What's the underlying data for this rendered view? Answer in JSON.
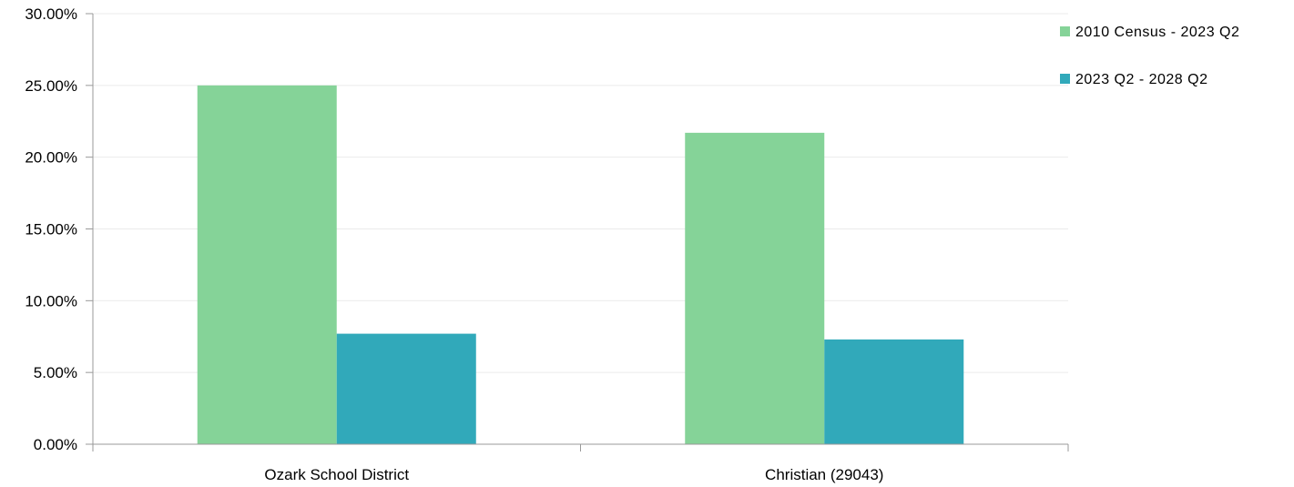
{
  "chart_data": {
    "type": "bar",
    "categories": [
      "Ozark School District",
      "Christian (29043)"
    ],
    "series": [
      {
        "name": "2010 Census - 2023 Q2",
        "values": [
          25.0,
          21.7
        ],
        "color": "#85d398"
      },
      {
        "name": "2023 Q2 - 2028 Q2",
        "values": [
          7.7,
          7.3
        ],
        "color": "#31a9ba"
      }
    ],
    "y_ticks": [
      "0.00%",
      "5.00%",
      "10.00%",
      "15.00%",
      "20.00%",
      "25.00%",
      "30.00%"
    ],
    "ylim": [
      0,
      30
    ],
    "grid": true,
    "legend_position": "top-right"
  }
}
